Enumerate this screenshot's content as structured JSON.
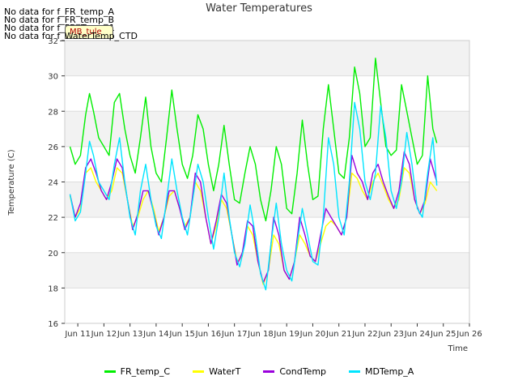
{
  "notes": [
    "No data for f_FR_temp_A",
    "No data for f_FR_temp_B",
    "No data for f_FD_Temp_1",
    "No data for f_WaterTemp_CTD"
  ],
  "badge_text": "MB_tule",
  "chart_data": {
    "type": "line",
    "title": "Water Temperatures",
    "xlabel": "Time",
    "ylabel": "Temperature (C)",
    "xlim": [
      10.5,
      26
    ],
    "ylim": [
      16,
      32
    ],
    "xticks": [
      11,
      12,
      13,
      14,
      15,
      16,
      17,
      18,
      19,
      20,
      21,
      22,
      23,
      24,
      25,
      26
    ],
    "xtick_labels": [
      "Jun 11",
      "Jun 12",
      "Jun 13",
      "Jun 14",
      "Jun 15",
      "Jun 16",
      "Jun 17",
      "Jun 18",
      "Jun 19",
      "Jun 20",
      "Jun 21",
      "Jun 22",
      "Jun 23",
      "Jun 24",
      "Jun 25",
      "Jun 26"
    ],
    "yticks": [
      16,
      18,
      20,
      22,
      24,
      26,
      28,
      30,
      32
    ],
    "grid": true,
    "legend_position": "bottom",
    "series": [
      {
        "name": "FR_temp_C",
        "color": "#00ee00",
        "x": [
          10.7,
          10.9,
          11.1,
          11.3,
          11.45,
          11.6,
          11.8,
          12.0,
          12.2,
          12.4,
          12.6,
          12.8,
          13.0,
          13.2,
          13.4,
          13.6,
          13.8,
          14.0,
          14.2,
          14.4,
          14.6,
          14.8,
          15.0,
          15.2,
          15.4,
          15.6,
          15.8,
          16.0,
          16.2,
          16.4,
          16.6,
          16.8,
          17.0,
          17.2,
          17.4,
          17.6,
          17.8,
          18.0,
          18.2,
          18.4,
          18.6,
          18.8,
          19.0,
          19.2,
          19.4,
          19.6,
          19.8,
          20.0,
          20.2,
          20.4,
          20.6,
          20.8,
          21.0,
          21.2,
          21.4,
          21.6,
          21.8,
          22.0,
          22.2,
          22.4,
          22.6,
          22.8,
          23.0,
          23.2,
          23.4,
          23.6,
          23.8,
          24.0,
          24.2,
          24.4,
          24.6,
          24.75
        ],
        "y": [
          26.0,
          25.0,
          25.5,
          27.8,
          29.0,
          28.0,
          26.5,
          26.0,
          25.5,
          28.5,
          29.0,
          27.0,
          25.5,
          24.5,
          26.5,
          28.8,
          26.0,
          24.5,
          24.0,
          26.5,
          29.2,
          27.0,
          25.0,
          24.2,
          25.5,
          27.8,
          27.0,
          25.0,
          23.5,
          25.0,
          27.2,
          25.0,
          23.0,
          22.8,
          24.5,
          26.0,
          25.0,
          23.0,
          21.8,
          23.5,
          26.0,
          25.0,
          22.5,
          22.2,
          24.5,
          27.5,
          25.0,
          23.0,
          23.2,
          27.0,
          29.5,
          27.0,
          24.5,
          24.2,
          26.5,
          30.5,
          29.0,
          26.0,
          26.5,
          31.0,
          28.5,
          26.0,
          25.5,
          25.8,
          29.5,
          28.0,
          26.5,
          25.0,
          25.5,
          30.0,
          27.0,
          26.2
        ]
      },
      {
        "name": "WaterT",
        "color": "#ffff00",
        "x": [
          10.7,
          10.9,
          11.1,
          11.3,
          11.5,
          11.7,
          11.9,
          12.1,
          12.3,
          12.5,
          12.7,
          12.9,
          13.1,
          13.3,
          13.5,
          13.7,
          13.9,
          14.1,
          14.3,
          14.5,
          14.7,
          14.9,
          15.1,
          15.3,
          15.5,
          15.7,
          15.9,
          16.1,
          16.3,
          16.5,
          16.7,
          16.9,
          17.1,
          17.3,
          17.5,
          17.7,
          17.9,
          18.1,
          18.3,
          18.5,
          18.7,
          18.9,
          19.1,
          19.3,
          19.5,
          19.7,
          19.9,
          20.1,
          20.3,
          20.5,
          20.7,
          20.9,
          21.1,
          21.3,
          21.5,
          21.7,
          21.9,
          22.1,
          22.3,
          22.5,
          22.7,
          22.9,
          23.1,
          23.3,
          23.5,
          23.7,
          23.9,
          24.1,
          24.3,
          24.5,
          24.75
        ],
        "y": [
          23.2,
          22.0,
          22.5,
          24.5,
          24.8,
          24.0,
          23.5,
          23.0,
          23.5,
          24.8,
          24.5,
          23.0,
          21.5,
          22.0,
          23.0,
          23.5,
          22.5,
          21.2,
          22.0,
          23.2,
          23.5,
          22.5,
          21.5,
          22.0,
          24.0,
          23.5,
          22.0,
          20.5,
          21.5,
          23.0,
          22.5,
          21.0,
          19.5,
          19.8,
          21.5,
          21.0,
          19.5,
          18.2,
          19.0,
          21.0,
          20.5,
          19.0,
          18.5,
          19.5,
          21.0,
          20.5,
          19.8,
          19.5,
          20.5,
          21.5,
          21.8,
          21.5,
          21.0,
          22.0,
          24.5,
          24.2,
          23.5,
          23.0,
          24.0,
          24.5,
          23.8,
          23.0,
          22.5,
          23.0,
          24.8,
          24.5,
          23.0,
          22.2,
          22.8,
          24.0,
          23.5
        ]
      },
      {
        "name": "CondTemp",
        "color": "#9a00dc",
        "x": [
          10.7,
          10.9,
          11.1,
          11.3,
          11.5,
          11.7,
          11.9,
          12.1,
          12.3,
          12.5,
          12.7,
          12.9,
          13.1,
          13.3,
          13.5,
          13.7,
          13.9,
          14.1,
          14.3,
          14.5,
          14.7,
          14.9,
          15.1,
          15.3,
          15.5,
          15.7,
          15.9,
          16.1,
          16.3,
          16.5,
          16.7,
          16.9,
          17.1,
          17.3,
          17.5,
          17.7,
          17.9,
          18.1,
          18.3,
          18.5,
          18.7,
          18.9,
          19.1,
          19.3,
          19.5,
          19.7,
          19.9,
          20.1,
          20.3,
          20.5,
          20.7,
          20.9,
          21.1,
          21.3,
          21.5,
          21.7,
          21.9,
          22.1,
          22.3,
          22.5,
          22.7,
          22.9,
          23.1,
          23.3,
          23.5,
          23.7,
          23.9,
          24.1,
          24.3,
          24.5,
          24.75
        ],
        "y": [
          23.3,
          22.0,
          22.8,
          24.8,
          25.3,
          24.5,
          23.5,
          23.0,
          24.0,
          25.3,
          24.8,
          23.0,
          21.3,
          22.2,
          23.5,
          23.5,
          22.3,
          21.0,
          22.0,
          23.5,
          23.5,
          22.5,
          21.3,
          22.0,
          24.5,
          24.0,
          22.0,
          20.5,
          21.8,
          23.3,
          22.8,
          21.0,
          19.3,
          20.0,
          21.8,
          21.5,
          19.5,
          18.3,
          19.0,
          22.0,
          21.0,
          19.0,
          18.5,
          19.5,
          22.0,
          21.0,
          19.8,
          19.5,
          21.0,
          22.5,
          22.0,
          21.5,
          21.0,
          22.0,
          25.5,
          24.5,
          24.0,
          23.0,
          24.5,
          25.0,
          24.0,
          23.2,
          22.5,
          23.5,
          25.7,
          25.0,
          23.0,
          22.2,
          23.0,
          25.3,
          24.0
        ]
      },
      {
        "name": "MDTemp_A",
        "color": "#00e5ff",
        "x": [
          10.7,
          10.9,
          11.1,
          11.3,
          11.45,
          11.6,
          11.8,
          12.0,
          12.2,
          12.4,
          12.6,
          12.8,
          13.0,
          13.2,
          13.4,
          13.6,
          13.8,
          14.0,
          14.2,
          14.4,
          14.6,
          14.8,
          15.0,
          15.2,
          15.4,
          15.6,
          15.8,
          16.0,
          16.2,
          16.4,
          16.6,
          16.8,
          17.0,
          17.2,
          17.4,
          17.6,
          17.8,
          18.0,
          18.2,
          18.4,
          18.6,
          18.8,
          19.0,
          19.2,
          19.4,
          19.6,
          19.8,
          20.0,
          20.2,
          20.4,
          20.6,
          20.8,
          21.0,
          21.2,
          21.4,
          21.6,
          21.8,
          22.0,
          22.2,
          22.4,
          22.6,
          22.8,
          23.0,
          23.2,
          23.4,
          23.6,
          23.8,
          24.0,
          24.2,
          24.4,
          24.6,
          24.75
        ],
        "y": [
          23.3,
          21.8,
          22.3,
          24.5,
          26.3,
          25.5,
          24.0,
          23.5,
          23.0,
          25.0,
          26.5,
          24.0,
          22.0,
          21.0,
          23.5,
          25.0,
          23.0,
          21.5,
          20.8,
          23.0,
          25.3,
          23.5,
          22.0,
          21.0,
          23.0,
          25.0,
          24.0,
          22.0,
          20.2,
          22.0,
          24.5,
          22.0,
          20.0,
          19.2,
          20.5,
          22.7,
          21.0,
          18.8,
          17.9,
          20.5,
          22.8,
          20.5,
          19.0,
          18.4,
          20.5,
          22.5,
          21.0,
          19.5,
          19.3,
          22.0,
          26.5,
          25.0,
          22.0,
          21.0,
          24.0,
          28.5,
          27.0,
          24.0,
          23.0,
          24.5,
          28.3,
          26.5,
          23.5,
          22.5,
          24.0,
          26.8,
          25.0,
          22.5,
          22.0,
          24.5,
          26.5,
          23.8
        ]
      }
    ]
  }
}
